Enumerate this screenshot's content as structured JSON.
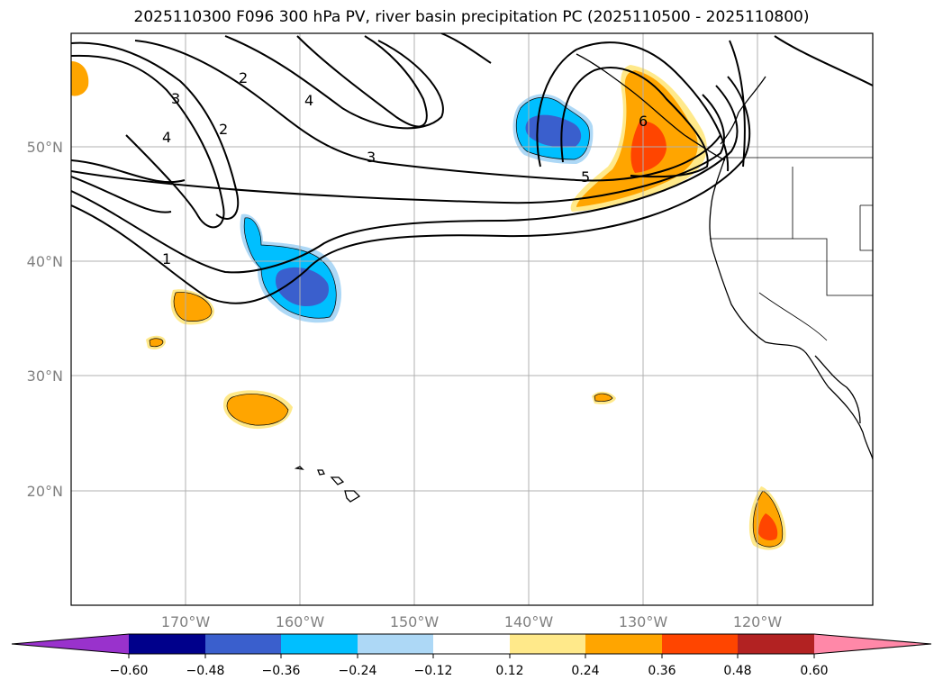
{
  "title": "2025110300 F096 300 hPa PV, river basin precipitation PC (2025110500 - 2025110800)",
  "map": {
    "lat_labels": [
      "50°N",
      "40°N",
      "30°N",
      "20°N"
    ],
    "lon_labels": [
      "170°W",
      "160°W",
      "150°W",
      "140°W",
      "130°W",
      "120°W"
    ],
    "contour_labels": [
      "1",
      "2",
      "3",
      "4",
      "5",
      "6"
    ]
  },
  "colorbar": {
    "ticks": [
      "−0.60",
      "−0.48",
      "−0.36",
      "−0.24",
      "−0.12",
      "0.12",
      "0.24",
      "0.36",
      "0.48",
      "0.60"
    ],
    "colors": [
      "#9932cc",
      "#00008b",
      "#3a5fcd",
      "#00bfff",
      "#add8f6",
      "#ffffff",
      "#ffe98a",
      "#ffa500",
      "#ff4500",
      "#b22222",
      "#ff88a8"
    ]
  }
}
